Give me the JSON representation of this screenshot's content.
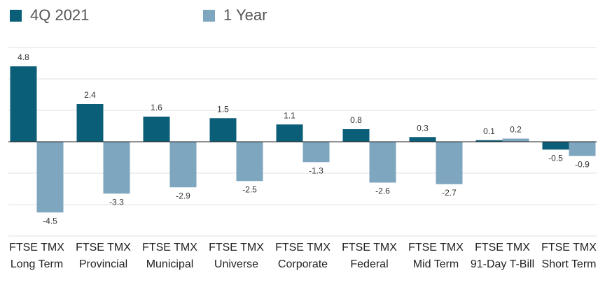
{
  "chart_data": {
    "type": "bar",
    "categories": [
      "FTSE TMX Long Term",
      "FTSE TMX Provincial",
      "FTSE TMX Municipal",
      "FTSE TMX Universe",
      "FTSE TMX Corporate",
      "FTSE TMX Federal",
      "FTSE TMX Mid Term",
      "FTSE TMX 91-Day T-Bill",
      "FTSE TMX Short Term"
    ],
    "series": [
      {
        "name": "4Q 2021",
        "color": "#0b5e78",
        "values": [
          4.8,
          2.4,
          1.6,
          1.5,
          1.1,
          0.8,
          0.3,
          0.1,
          -0.5
        ]
      },
      {
        "name": "1 Year",
        "color": "#7ea6bf",
        "values": [
          -4.5,
          -3.3,
          -2.9,
          -2.5,
          -1.3,
          -2.6,
          -2.7,
          0.2,
          -0.9
        ]
      }
    ],
    "ylim": [
      -6,
      6
    ],
    "yticks": [
      -6,
      -4,
      -2,
      0,
      2,
      4,
      6
    ],
    "grid": true,
    "legend": "top-left"
  }
}
